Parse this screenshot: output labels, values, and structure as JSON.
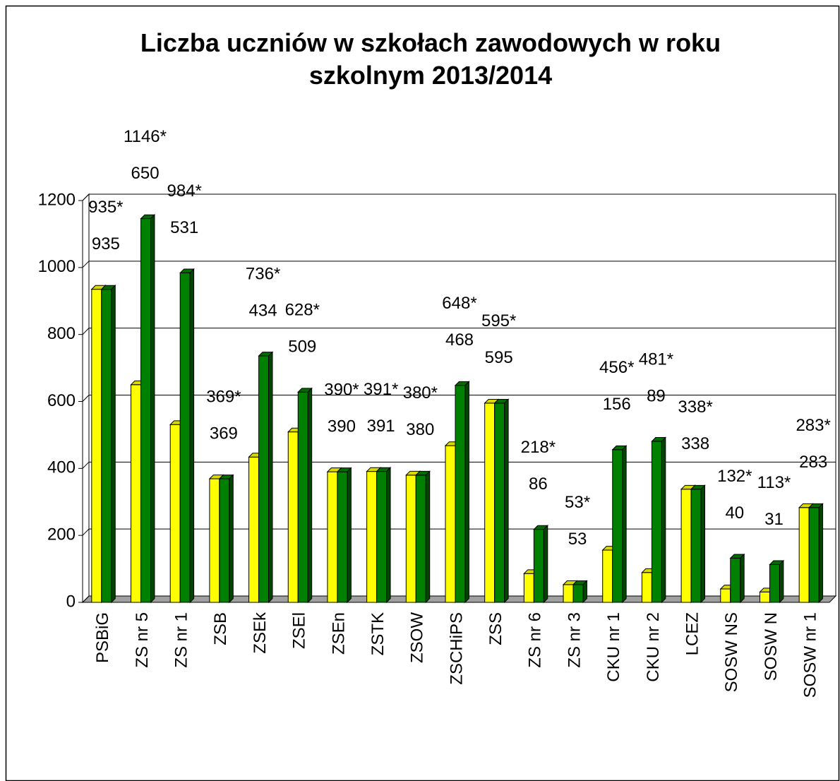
{
  "chart_data": {
    "type": "bar3d",
    "title": "Liczba uczniów w szkołach zawodowych w roku szkolnym 2013/2014",
    "categories": [
      "PSBiG",
      "ZS nr 5",
      "ZS nr 1",
      "ZSB",
      "ZSEk",
      "ZSEl",
      "ZSEn",
      "ZSTK",
      "ZSOW",
      "ZSCHiPS",
      "ZSS",
      "ZS nr 6",
      "ZS nr 3",
      "CKU nr 1",
      "CKU nr 2",
      "LCEZ",
      "SOSW NS",
      "SOSW N",
      "SOSW nr 1"
    ],
    "series": [
      {
        "color": "#ffff00",
        "values": [
          935,
          650,
          531,
          369,
          434,
          509,
          390,
          391,
          380,
          468,
          595,
          86,
          53,
          156,
          89,
          338,
          40,
          31,
          283
        ]
      },
      {
        "color": "#008000",
        "values": [
          935,
          1146,
          984,
          369,
          736,
          628,
          390,
          391,
          380,
          648,
          595,
          218,
          53,
          456,
          481,
          338,
          132,
          113,
          283
        ],
        "value_labels": [
          "935*",
          "1146*",
          "984*",
          "369*",
          "736*",
          "628*",
          "390*",
          "391*",
          "380*",
          "648*",
          "595*",
          "218*",
          "53*",
          "456*",
          "481*",
          "338*",
          "132*",
          "113*",
          "283*"
        ]
      }
    ],
    "ylim": [
      0,
      1200
    ],
    "yticks": [
      0,
      200,
      400,
      600,
      800,
      1000,
      1200
    ],
    "grid": true
  }
}
